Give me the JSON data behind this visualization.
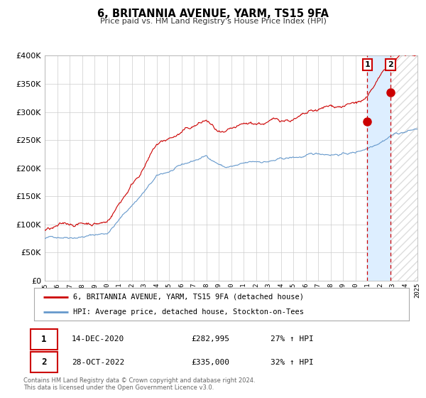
{
  "title": "6, BRITANNIA AVENUE, YARM, TS15 9FA",
  "subtitle": "Price paid vs. HM Land Registry's House Price Index (HPI)",
  "legend_line1": "6, BRITANNIA AVENUE, YARM, TS15 9FA (detached house)",
  "legend_line2": "HPI: Average price, detached house, Stockton-on-Tees",
  "footer1": "Contains HM Land Registry data © Crown copyright and database right 2024.",
  "footer2": "This data is licensed under the Open Government Licence v3.0.",
  "sale1_date": "14-DEC-2020",
  "sale1_price": "£282,995",
  "sale1_hpi": "27% ↑ HPI",
  "sale2_date": "28-OCT-2022",
  "sale2_price": "£335,000",
  "sale2_hpi": "32% ↑ HPI",
  "sale1_year": 2020.96,
  "sale2_year": 2022.83,
  "sale1_value": 282995,
  "sale2_value": 335000,
  "red_color": "#cc0000",
  "blue_color": "#6699cc",
  "highlight_color": "#ddeeff",
  "hatch_color": "#dddddd",
  "grid_color": "#cccccc",
  "bg_color": "#ffffff",
  "xmin": 1995,
  "xmax": 2025,
  "ymin": 0,
  "ymax": 400000,
  "yticks": [
    0,
    50000,
    100000,
    150000,
    200000,
    250000,
    300000,
    350000,
    400000
  ]
}
